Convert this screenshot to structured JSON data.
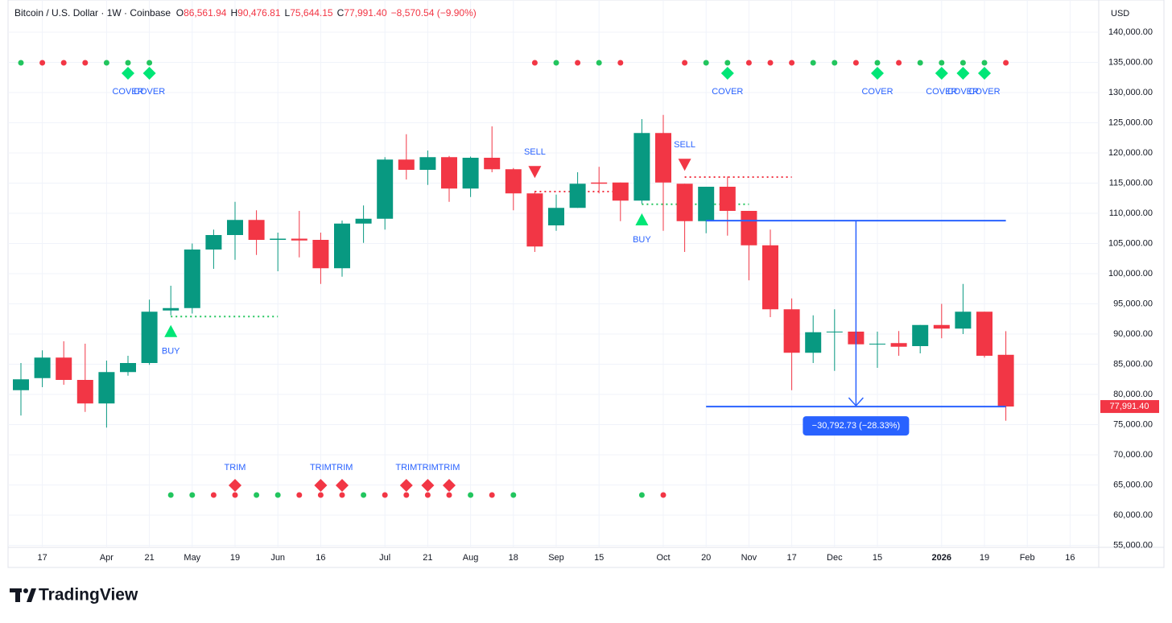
{
  "header": {
    "symbol": "Bitcoin / U.S. Dollar · 1W · Coinbase",
    "o_label": "O",
    "o": "86,561.94",
    "h_label": "H",
    "h": "90,476.81",
    "l_label": "L",
    "l": "75,644.15",
    "c_label": "C",
    "c": "77,991.40",
    "change": "−8,570.54 (−9.90%)"
  },
  "branding": "TradingView",
  "chart_data": {
    "type": "candlestick",
    "currency": "USD",
    "categories": [
      null,
      "17",
      null,
      null,
      "Apr",
      null,
      "21",
      null,
      "May",
      null,
      "19",
      null,
      "Jun",
      null,
      "16",
      null,
      null,
      "Jul",
      null,
      "21",
      null,
      "Aug",
      null,
      "18",
      null,
      "Sep",
      null,
      "15",
      null,
      null,
      "Oct",
      null,
      "20",
      null,
      "Nov",
      null,
      "17",
      null,
      "Dec",
      null,
      "15",
      null,
      null,
      "2026",
      null,
      "19",
      null,
      "Feb",
      null,
      "16"
    ],
    "open": [
      80700,
      82700,
      86100,
      82400,
      78500,
      83700,
      85200,
      93900,
      94300,
      104000,
      106400,
      108900,
      105600,
      105800,
      105600,
      100900,
      108300,
      109100,
      118900,
      117200,
      119300,
      114100,
      119200,
      117300,
      113300,
      108000,
      110900,
      115100,
      115100,
      112100,
      123300,
      114900,
      108700,
      114400,
      110400,
      104700,
      94100,
      86900,
      90300,
      90400,
      88300,
      88500,
      88000,
      91500,
      90900,
      93700,
      86561.94,
      null,
      null,
      null
    ],
    "high": [
      85200,
      87300,
      88800,
      88400,
      85600,
      86400,
      95700,
      98000,
      105000,
      107300,
      111900,
      110500,
      106800,
      110400,
      106800,
      108800,
      111300,
      119300,
      123100,
      120400,
      119500,
      119400,
      124400,
      117500,
      113700,
      113100,
      116800,
      117700,
      115100,
      125600,
      126300,
      114900,
      114400,
      116100,
      110400,
      107300,
      95900,
      93100,
      94100,
      93900,
      90400,
      90500,
      91500,
      95000,
      98300,
      93700,
      90476.81,
      null,
      null,
      null
    ],
    "low": [
      76500,
      81200,
      81600,
      77100,
      74500,
      83100,
      84900,
      93100,
      93400,
      100800,
      102300,
      103100,
      100400,
      102700,
      98300,
      99500,
      105100,
      107300,
      115600,
      114700,
      111900,
      112700,
      116800,
      110500,
      103600,
      107100,
      110900,
      113300,
      108700,
      111600,
      107100,
      103600,
      106700,
      106300,
      98900,
      92800,
      80700,
      85200,
      83900,
      87600,
      84400,
      86400,
      86800,
      89300,
      90000,
      86100,
      75644.15,
      null,
      null,
      null
    ],
    "close": [
      82500,
      86100,
      82400,
      78500,
      83700,
      85200,
      93700,
      94300,
      104000,
      106400,
      108900,
      105600,
      105800,
      105500,
      100900,
      108300,
      109100,
      118900,
      117200,
      119300,
      114100,
      119200,
      117300,
      113300,
      104500,
      110900,
      114900,
      114900,
      112100,
      123300,
      115100,
      108700,
      114400,
      110400,
      104700,
      94100,
      86900,
      90300,
      90400,
      88300,
      88400,
      87900,
      91500,
      90900,
      93700,
      86400,
      77991.4,
      null,
      null,
      null
    ],
    "up_color": "#089981",
    "down_color": "#f23645",
    "ylim": [
      54667,
      145333
    ],
    "yticks": [
      {
        "value": 55000,
        "label": "55,000.00"
      },
      {
        "value": 60000,
        "label": "60,000.00"
      },
      {
        "value": 65000,
        "label": "65,000.00"
      },
      {
        "value": 70000,
        "label": "70,000.00"
      },
      {
        "value": 75000,
        "label": "75,000.00"
      },
      {
        "value": 80000,
        "label": "80,000.00"
      },
      {
        "value": 85000,
        "label": "85,000.00"
      },
      {
        "value": 90000,
        "label": "90,000.00"
      },
      {
        "value": 95000,
        "label": "95,000.00"
      },
      {
        "value": 100000,
        "label": "100,000.00"
      },
      {
        "value": 105000,
        "label": "105,000.00"
      },
      {
        "value": 110000,
        "label": "110,000.00"
      },
      {
        "value": 115000,
        "label": "115,000.00"
      },
      {
        "value": 120000,
        "label": "120,000.00"
      },
      {
        "value": 125000,
        "label": "125,000.00"
      },
      {
        "value": 130000,
        "label": "130,000.00"
      },
      {
        "value": 135000,
        "label": "135,000.00"
      },
      {
        "value": 140000,
        "label": "140,000.00"
      }
    ],
    "grid": true,
    "last_price": {
      "value": 77991.4,
      "label": "77,991.40",
      "color": "#f23645"
    },
    "measure": {
      "from": 108784.13,
      "to": 77991.4,
      "label": "−30,792.73 (−28.33%)",
      "start": 32,
      "end": 46,
      "arrow": 39,
      "color": "#2962ff"
    },
    "levels": [
      {
        "value": 92900,
        "from": 7,
        "to": 12,
        "color": "#22c55e"
      },
      {
        "value": 113600,
        "from": 24,
        "to": 28,
        "color": "#f23645"
      },
      {
        "value": 111500,
        "from": 29,
        "to": 34,
        "color": "#22c55e"
      },
      {
        "value": 116000,
        "from": 31,
        "to": 36,
        "color": "#f23645"
      }
    ],
    "top_dots": [
      "#22c55e",
      "#f23645",
      "#f23645",
      "#f23645",
      "#22c55e",
      "#22c55e",
      "#22c55e",
      null,
      null,
      null,
      null,
      null,
      null,
      null,
      null,
      null,
      null,
      null,
      null,
      null,
      null,
      null,
      null,
      null,
      "#f23645",
      "#22c55e",
      "#f23645",
      "#22c55e",
      "#f23645",
      null,
      null,
      "#f23645",
      "#22c55e",
      "#22c55e",
      "#f23645",
      "#f23645",
      "#f23645",
      "#22c55e",
      "#22c55e",
      "#f23645",
      "#22c55e",
      "#f23645",
      "#22c55e",
      "#22c55e",
      "#22c55e",
      "#22c55e",
      "#f23645",
      null,
      null,
      null
    ],
    "bottom_dots": [
      null,
      null,
      null,
      null,
      null,
      null,
      null,
      "#22c55e",
      "#22c55e",
      "#f23645",
      "#f23645",
      "#22c55e",
      "#22c55e",
      "#f23645",
      "#f23645",
      "#f23645",
      "#22c55e",
      "#f23645",
      "#f23645",
      "#f23645",
      "#f23645",
      "#22c55e",
      "#f23645",
      "#22c55e",
      null,
      null,
      null,
      null,
      null,
      "#22c55e",
      "#f23645",
      null,
      null,
      null,
      null,
      null,
      null,
      null,
      null,
      null,
      null,
      null,
      null,
      null,
      null,
      null,
      null,
      null,
      null,
      null
    ],
    "cover": {
      "text": "COVER",
      "indices": [
        5,
        6,
        33,
        40,
        43,
        44,
        45
      ],
      "color": "#00e676"
    },
    "trim": {
      "text": "TRIM",
      "indices": [
        10,
        14,
        15,
        18,
        19,
        20
      ],
      "color": "#f23645"
    },
    "buy": {
      "text": "BUY",
      "indices": [
        7,
        29
      ],
      "color": "#00e676"
    },
    "sell": {
      "text": "SELL",
      "indices": [
        24,
        31
      ],
      "color": "#f23645"
    }
  }
}
